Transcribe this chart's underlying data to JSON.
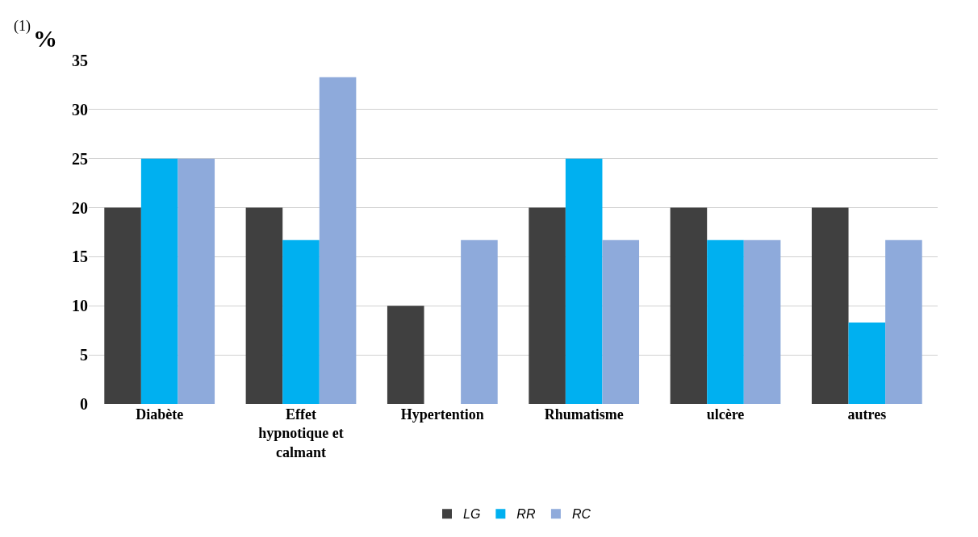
{
  "chart_data": {
    "type": "bar",
    "ylabel": "%",
    "categories": [
      "Diabète",
      "Effet hypnotique et calmant",
      "Hypertention",
      "Rhumatisme",
      "ulcère",
      "autres"
    ],
    "series": [
      {
        "name": "LG",
        "color": "#404040",
        "values": [
          20,
          20,
          10,
          20,
          20,
          20
        ]
      },
      {
        "name": "RR",
        "color": "#00b0f0",
        "values": [
          25,
          16.7,
          0,
          25,
          16.7,
          8.3
        ]
      },
      {
        "name": "RC",
        "color": "#8eaadb",
        "values": [
          25,
          33.3,
          16.7,
          16.7,
          16.7,
          16.7
        ]
      }
    ],
    "ylim": [
      0,
      35
    ],
    "yticks": [
      0,
      5,
      10,
      15,
      20,
      25,
      30,
      35
    ],
    "grid": "y",
    "legend": "bottom",
    "annotations": [
      "(1)"
    ]
  }
}
